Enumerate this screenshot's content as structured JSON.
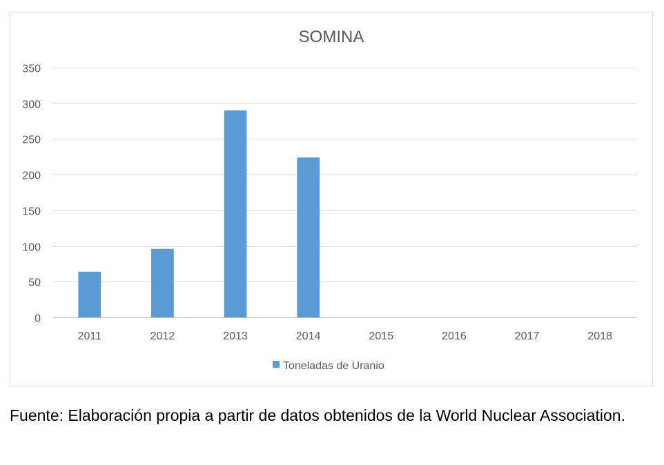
{
  "chart_data": {
    "type": "bar",
    "title": "SOMINA",
    "xlabel": "",
    "ylabel": "",
    "categories": [
      "2011",
      "2012",
      "2013",
      "2014",
      "2015",
      "2016",
      "2017",
      "2018"
    ],
    "series": [
      {
        "name": "Toneladas de Uranio",
        "values": [
          64,
          96,
          290,
          224,
          0,
          0,
          0,
          0
        ],
        "color": "#5b9bd5"
      }
    ],
    "ylim": [
      0,
      350
    ],
    "yticks": [
      0,
      50,
      100,
      150,
      200,
      250,
      300,
      350
    ],
    "grid": true,
    "legend_position": "bottom"
  },
  "caption": "Fuente: Elaboración propia a partir de datos obtenidos de la World Nuclear Association."
}
